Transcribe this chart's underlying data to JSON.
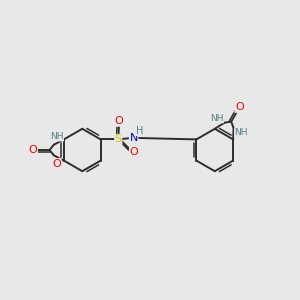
{
  "background_color": "#e8e8e8",
  "bond_color": "#2d2d2d",
  "O_color": "#ff0000",
  "N_color": "#0000cc",
  "S_color": "#cccc00",
  "H_color": "#4d8080",
  "figsize": [
    3.0,
    3.0
  ],
  "dpi": 100,
  "xlim": [
    0,
    10
  ],
  "ylim": [
    0,
    10
  ]
}
